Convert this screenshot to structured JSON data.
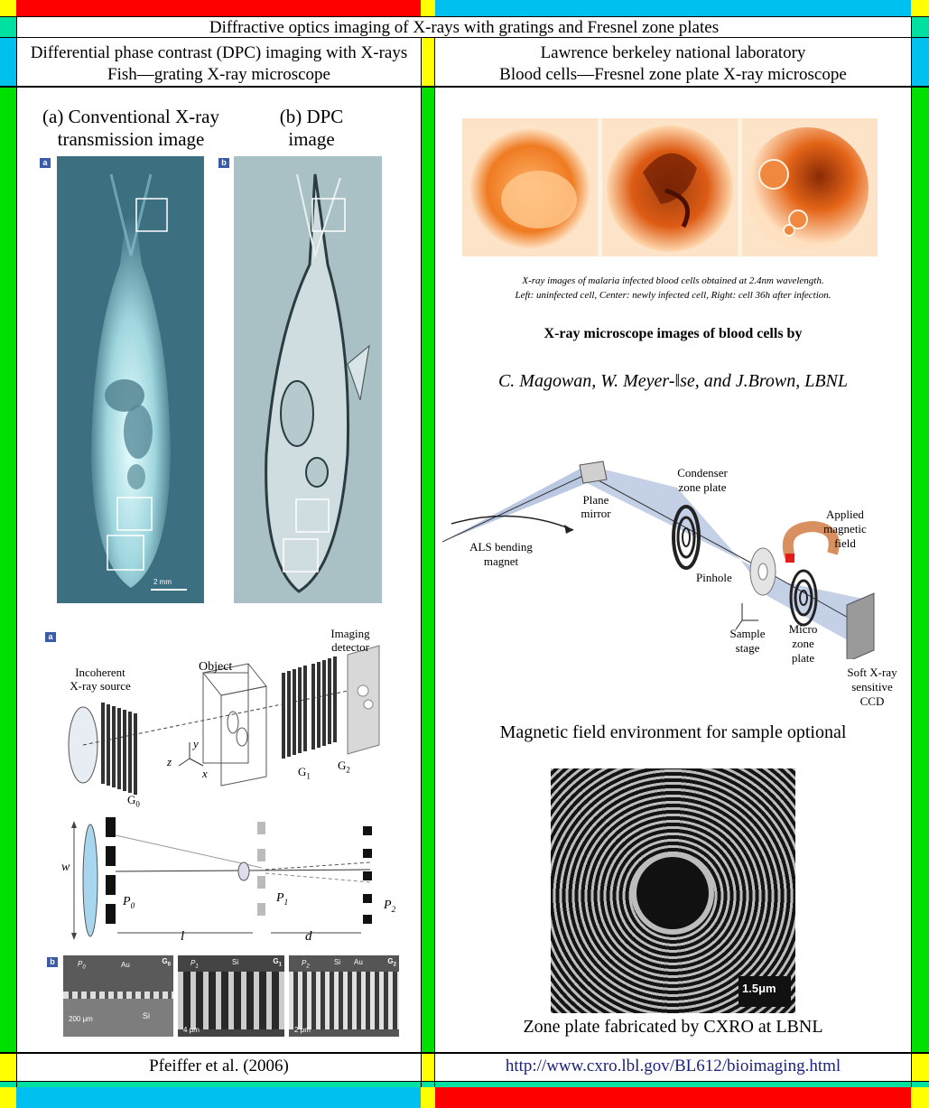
{
  "header": {
    "title": "Diffractive optics imaging of X-rays with gratings and Fresnel zone plates",
    "left_heading_line1": "Differential phase contrast (DPC) imaging with X-rays",
    "left_heading_line2": "Fish—grating X-ray microscope",
    "right_heading_line1": "Lawrence berkeley national laboratory",
    "right_heading_line2": "Blood cells—Fresnel zone plate X-ray microscope"
  },
  "left_panel": {
    "fish_a_title_line1": "(a) Conventional X-ray",
    "fish_a_title_line2": "transmission image",
    "fish_b_title_line1": "(b) DPC",
    "fish_b_title_line2": "image",
    "badge_a": "a",
    "badge_b": "b",
    "scale_bar": "2 mm",
    "setup_badge": "a",
    "label_imaging_detector_1": "Imaging",
    "label_imaging_detector_2": "detector",
    "label_object": "Object",
    "label_source_1": "Incoherent",
    "label_source_2": "X-ray source",
    "label_g0": "G",
    "label_g0_sub": "0",
    "label_g1": "G",
    "label_g1_sub": "1",
    "label_g2": "G",
    "label_g2_sub": "2",
    "axis_x": "x",
    "axis_y": "y",
    "axis_z": "z",
    "geom_w": "w",
    "geom_p0": "P",
    "geom_p0_sub": "0",
    "geom_p1": "P",
    "geom_p1_sub": "1",
    "geom_p2": "P",
    "geom_p2_sub": "2",
    "geom_l": "l",
    "geom_d": "d",
    "sem_badge": "b",
    "sem_g0": "G",
    "sem_g0_sub": "0",
    "sem_g1": "G",
    "sem_g1_sub": "1",
    "sem_g2": "G",
    "sem_g2_sub": "2",
    "sem_p0": "P",
    "sem_p0_sub": "0",
    "sem_p1": "P",
    "sem_p1_sub": "1",
    "sem_p2": "P",
    "sem_p2_sub": "2",
    "sem_au1": "Au",
    "sem_au2": "Au",
    "sem_si1": "Si",
    "sem_si2": "Si",
    "sem_si3": "Si",
    "sem_scale1": "200 μm",
    "sem_scale2": "4 μm",
    "sem_scale3": "2 μm"
  },
  "right_panel": {
    "cells_caption_line1": "X-ray images of malaria infected blood cells obtained at 2.4nm wavelength.",
    "cells_caption_line2": "Left: uninfected cell, Center: newly infected cell, Right: cell 36h after infection.",
    "bold_title": "X-ray microscope images of blood cells by",
    "authors": "C. Magowan, W. Meyer-ǁse, and J.Brown, LBNL",
    "label_plane_mirror_1": "Plane",
    "label_plane_mirror_2": "mirror",
    "label_condenser_1": "Condenser",
    "label_condenser_2": "zone plate",
    "label_applied_1": "Applied",
    "label_applied_2": "magnetic",
    "label_applied_3": "field",
    "label_als_1": "ALS bending",
    "label_als_2": "magnet",
    "label_pinhole": "Pinhole",
    "label_sample_1": "Sample",
    "label_sample_2": "stage",
    "label_micro_1": "Micro",
    "label_micro_2": "zone",
    "label_micro_3": "plate",
    "label_ccd_1": "Soft X-ray",
    "label_ccd_2": "sensitive",
    "label_ccd_3": "CCD",
    "magnetic_caption": "Magnetic field environment for sample optional",
    "zone_scale": "1.5μm",
    "zone_caption": "Zone plate fabricated by CXRO at LBNL"
  },
  "footer": {
    "left": "Pfeiffer et al. (2006)",
    "right_link": "http://www.cxro.lbl.gov/BL612/bioimaging.html"
  },
  "colors": {
    "red": "#ff0000",
    "cyan": "#00c0f0",
    "green": "#00e000",
    "yellow": "#ffff00",
    "teal": "#00e0a0",
    "link": "#1a237e"
  }
}
